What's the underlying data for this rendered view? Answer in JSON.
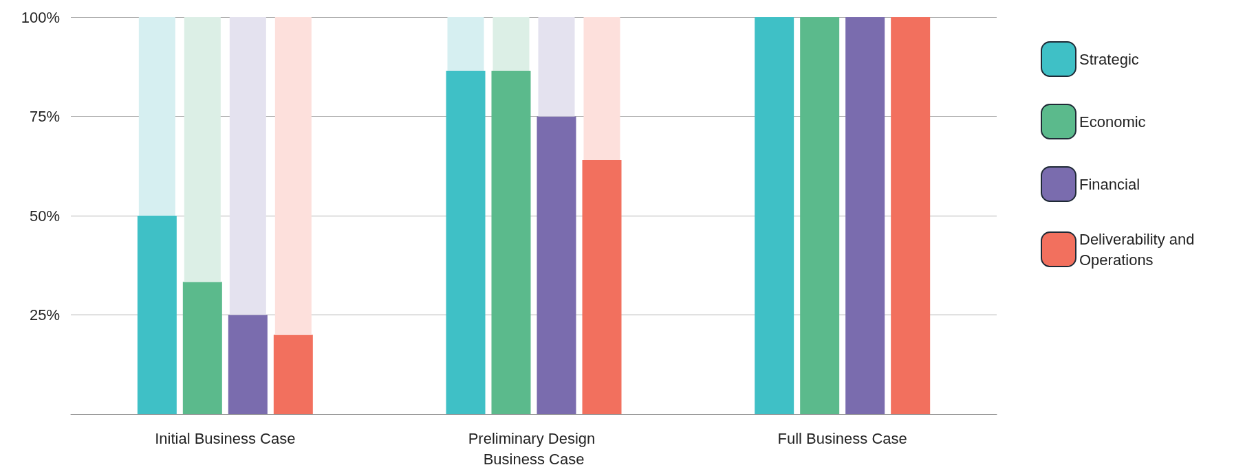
{
  "chart_data": {
    "type": "bar",
    "categories": [
      "Initial Business Case",
      "Preliminary Design Business Case",
      "Full Business Case"
    ],
    "series": [
      {
        "name": "Strategic",
        "color": "#3fc0c6",
        "values": [
          50,
          86.5,
          100
        ]
      },
      {
        "color": "#d6eff1",
        "values": [
          50,
          13.5,
          null
        ],
        "base": [
          50,
          86.5,
          null
        ]
      },
      {
        "name": "Economic",
        "color": "#5bba8c",
        "values": [
          33.3,
          86.5,
          100
        ]
      },
      {
        "color": "#dcefe6",
        "values": [
          66.7,
          13.5,
          null
        ],
        "base": [
          33.3,
          86.5,
          null
        ]
      },
      {
        "name": "Financial",
        "color": "#7a6cae",
        "values": [
          25,
          75,
          100
        ]
      },
      {
        "color": "#e4e2ef",
        "values": [
          75,
          25,
          null
        ],
        "base": [
          25,
          75,
          null
        ]
      },
      {
        "name": "Deliverability and Operations",
        "color": "#f2705e",
        "values": [
          20,
          64,
          100
        ]
      },
      {
        "color": "#fde0dc",
        "values": [
          80,
          36,
          null
        ],
        "base": [
          20,
          64,
          null
        ]
      }
    ],
    "ylim": [
      0,
      100
    ],
    "yticks": [
      {
        "value": 25,
        "label": "25%"
      },
      {
        "value": 50,
        "label": "50%"
      },
      {
        "value": 75,
        "label": "75%"
      },
      {
        "value": 100,
        "label": "100%"
      }
    ],
    "grid": "y",
    "legend": "right"
  }
}
